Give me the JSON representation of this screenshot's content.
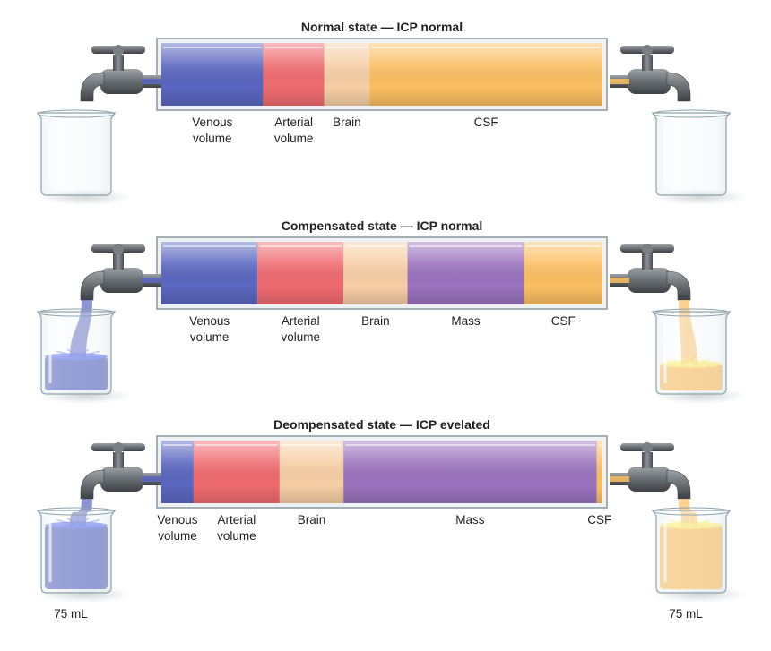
{
  "colors": {
    "venous": "#5b67c0",
    "arterial": "#ef6b70",
    "brain": "#f7cfa6",
    "mass": "#9a72bd",
    "csf": "#fbbf63"
  },
  "states": [
    {
      "title": "Normal state — ICP normal",
      "segments": [
        {
          "key": "venous",
          "label": [
            "Venous",
            "volume"
          ],
          "fraction": 0.231
        },
        {
          "key": "arterial",
          "label": [
            "Arterial",
            "volume"
          ],
          "fraction": 0.138
        },
        {
          "key": "brain",
          "label": [
            "Brain"
          ],
          "fraction": 0.103
        },
        {
          "key": "csf",
          "label": [
            "CSF"
          ],
          "fraction": 0.528
        }
      ],
      "left_beaker": {
        "fill": 0,
        "color": "venous",
        "volume_label": ""
      },
      "right_beaker": {
        "fill": 0,
        "color": "csf",
        "volume_label": ""
      },
      "left_flow": false,
      "right_flow": false
    },
    {
      "title": "Compensated state — ICP normal",
      "segments": [
        {
          "key": "venous",
          "label": [
            "Venous",
            "volume"
          ],
          "fraction": 0.218
        },
        {
          "key": "arterial",
          "label": [
            "Arterial",
            "volume"
          ],
          "fraction": 0.195
        },
        {
          "key": "brain",
          "label": [
            "Brain"
          ],
          "fraction": 0.145
        },
        {
          "key": "mass",
          "label": [
            "Mass"
          ],
          "fraction": 0.264
        },
        {
          "key": "csf",
          "label": [
            "CSF"
          ],
          "fraction": 0.178
        }
      ],
      "left_beaker": {
        "fill": 0.45,
        "color": "venous",
        "volume_label": ""
      },
      "right_beaker": {
        "fill": 0.35,
        "color": "csf",
        "volume_label": ""
      },
      "left_flow": true,
      "right_flow": true
    },
    {
      "title": "Deompensated state — ICP evelated",
      "segments": [
        {
          "key": "venous",
          "label": [
            "Venous",
            "volume"
          ],
          "fraction": 0.073
        },
        {
          "key": "arterial",
          "label": [
            "Arterial",
            "volume"
          ],
          "fraction": 0.195
        },
        {
          "key": "brain",
          "label": [
            "Brain"
          ],
          "fraction": 0.145
        },
        {
          "key": "mass",
          "label": [
            "Mass"
          ],
          "fraction": 0.574
        },
        {
          "key": "csf",
          "label": [
            "CSF"
          ],
          "fraction": 0.013
        }
      ],
      "left_beaker": {
        "fill": 0.85,
        "color": "venous",
        "volume_label": "75 mL"
      },
      "right_beaker": {
        "fill": 0.85,
        "color": "csf",
        "volume_label": "75 mL"
      },
      "left_flow": true,
      "right_flow": true
    }
  ]
}
